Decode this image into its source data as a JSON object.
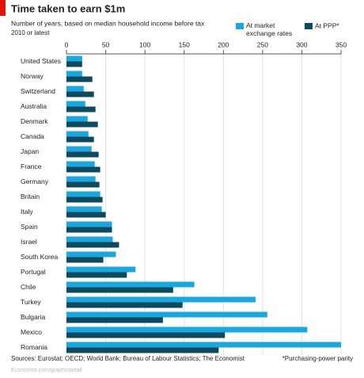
{
  "chart_data": {
    "type": "bar",
    "orientation": "horizontal",
    "title": "Time taken to earn $1m",
    "subtitle": "Number of years, based on median household income before tax",
    "subtitle2": "2010 or latest",
    "categories": [
      "United States",
      "Norway",
      "Switzerland",
      "Australia",
      "Denmark",
      "Canada",
      "Japan",
      "France",
      "Germany",
      "Britain",
      "Italy",
      "Spain",
      "Israel",
      "South Korea",
      "Portugal",
      "Chile",
      "Turkey",
      "Bulgaria",
      "Mexico",
      "Romania"
    ],
    "series": [
      {
        "name": "At market exchange rates",
        "color": "#1ba6dd",
        "values": [
          20,
          20,
          22,
          24,
          27,
          28,
          32,
          36,
          37,
          43,
          45,
          58,
          59,
          63,
          88,
          163,
          241,
          256,
          307,
          350
        ]
      },
      {
        "name": "At PPP*",
        "color": "#0d4a5f",
        "values": [
          20,
          33,
          35,
          37,
          40,
          35,
          41,
          43,
          42,
          46,
          50,
          58,
          67,
          47,
          77,
          136,
          148,
          123,
          202,
          194
        ]
      }
    ],
    "xlim": [
      0,
      350
    ],
    "xticks": [
      0,
      50,
      100,
      150,
      200,
      250,
      300,
      350
    ],
    "grid": true,
    "source": "Sources: Eurostat; OECD; World Bank; Bureau of Labour Statistics; The Economist",
    "footnote": "*Purchasing-power parity",
    "credit": "Economist.com/graphicdetail"
  }
}
